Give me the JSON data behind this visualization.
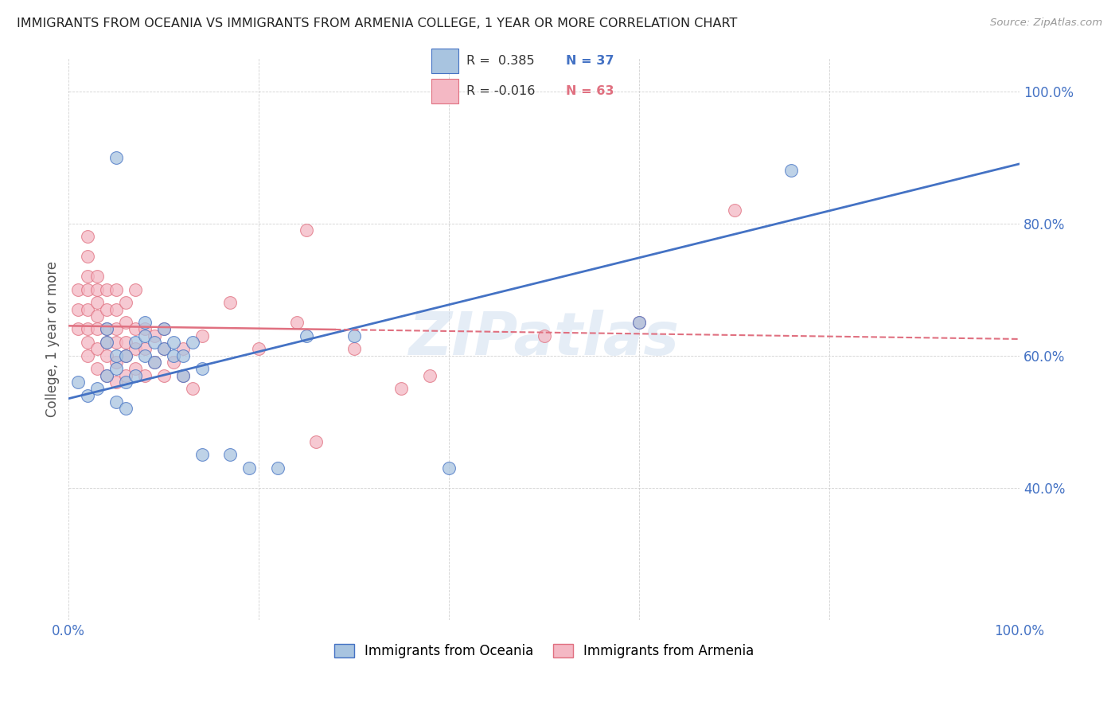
{
  "title": "IMMIGRANTS FROM OCEANIA VS IMMIGRANTS FROM ARMENIA COLLEGE, 1 YEAR OR MORE CORRELATION CHART",
  "source": "Source: ZipAtlas.com",
  "ylabel": "College, 1 year or more",
  "xlim": [
    0.0,
    1.0
  ],
  "ylim": [
    0.2,
    1.05
  ],
  "color_oceania": "#a8c4e0",
  "color_armenia": "#f4b8c4",
  "line_color_oceania": "#4472c4",
  "line_color_armenia": "#e07080",
  "watermark": "ZIPatlas",
  "oceania_x": [
    0.01,
    0.02,
    0.03,
    0.04,
    0.04,
    0.04,
    0.05,
    0.05,
    0.05,
    0.06,
    0.06,
    0.06,
    0.07,
    0.07,
    0.08,
    0.08,
    0.08,
    0.09,
    0.09,
    0.1,
    0.1,
    0.11,
    0.11,
    0.12,
    0.12,
    0.13,
    0.14,
    0.14,
    0.17,
    0.19,
    0.22,
    0.25,
    0.3,
    0.4,
    0.6,
    0.76,
    0.05
  ],
  "oceania_y": [
    0.56,
    0.54,
    0.55,
    0.57,
    0.62,
    0.64,
    0.53,
    0.58,
    0.6,
    0.52,
    0.56,
    0.6,
    0.57,
    0.62,
    0.6,
    0.63,
    0.65,
    0.59,
    0.62,
    0.61,
    0.64,
    0.6,
    0.62,
    0.57,
    0.6,
    0.62,
    0.58,
    0.45,
    0.45,
    0.43,
    0.43,
    0.63,
    0.63,
    0.43,
    0.65,
    0.88,
    0.9
  ],
  "armenia_x": [
    0.01,
    0.01,
    0.01,
    0.02,
    0.02,
    0.02,
    0.02,
    0.02,
    0.02,
    0.02,
    0.02,
    0.03,
    0.03,
    0.03,
    0.03,
    0.03,
    0.03,
    0.03,
    0.04,
    0.04,
    0.04,
    0.04,
    0.04,
    0.04,
    0.05,
    0.05,
    0.05,
    0.05,
    0.05,
    0.05,
    0.06,
    0.06,
    0.06,
    0.06,
    0.06,
    0.07,
    0.07,
    0.07,
    0.07,
    0.08,
    0.08,
    0.08,
    0.09,
    0.09,
    0.1,
    0.1,
    0.1,
    0.11,
    0.12,
    0.12,
    0.13,
    0.14,
    0.17,
    0.2,
    0.24,
    0.26,
    0.3,
    0.25,
    0.35,
    0.38,
    0.5,
    0.6,
    0.7
  ],
  "armenia_y": [
    0.64,
    0.67,
    0.7,
    0.6,
    0.62,
    0.64,
    0.67,
    0.7,
    0.72,
    0.75,
    0.78,
    0.58,
    0.61,
    0.64,
    0.66,
    0.68,
    0.7,
    0.72,
    0.57,
    0.6,
    0.62,
    0.64,
    0.67,
    0.7,
    0.56,
    0.59,
    0.62,
    0.64,
    0.67,
    0.7,
    0.57,
    0.6,
    0.62,
    0.65,
    0.68,
    0.58,
    0.61,
    0.64,
    0.7,
    0.57,
    0.61,
    0.64,
    0.59,
    0.63,
    0.57,
    0.61,
    0.64,
    0.59,
    0.57,
    0.61,
    0.55,
    0.63,
    0.68,
    0.61,
    0.65,
    0.47,
    0.61,
    0.79,
    0.55,
    0.57,
    0.63,
    0.65,
    0.82
  ]
}
